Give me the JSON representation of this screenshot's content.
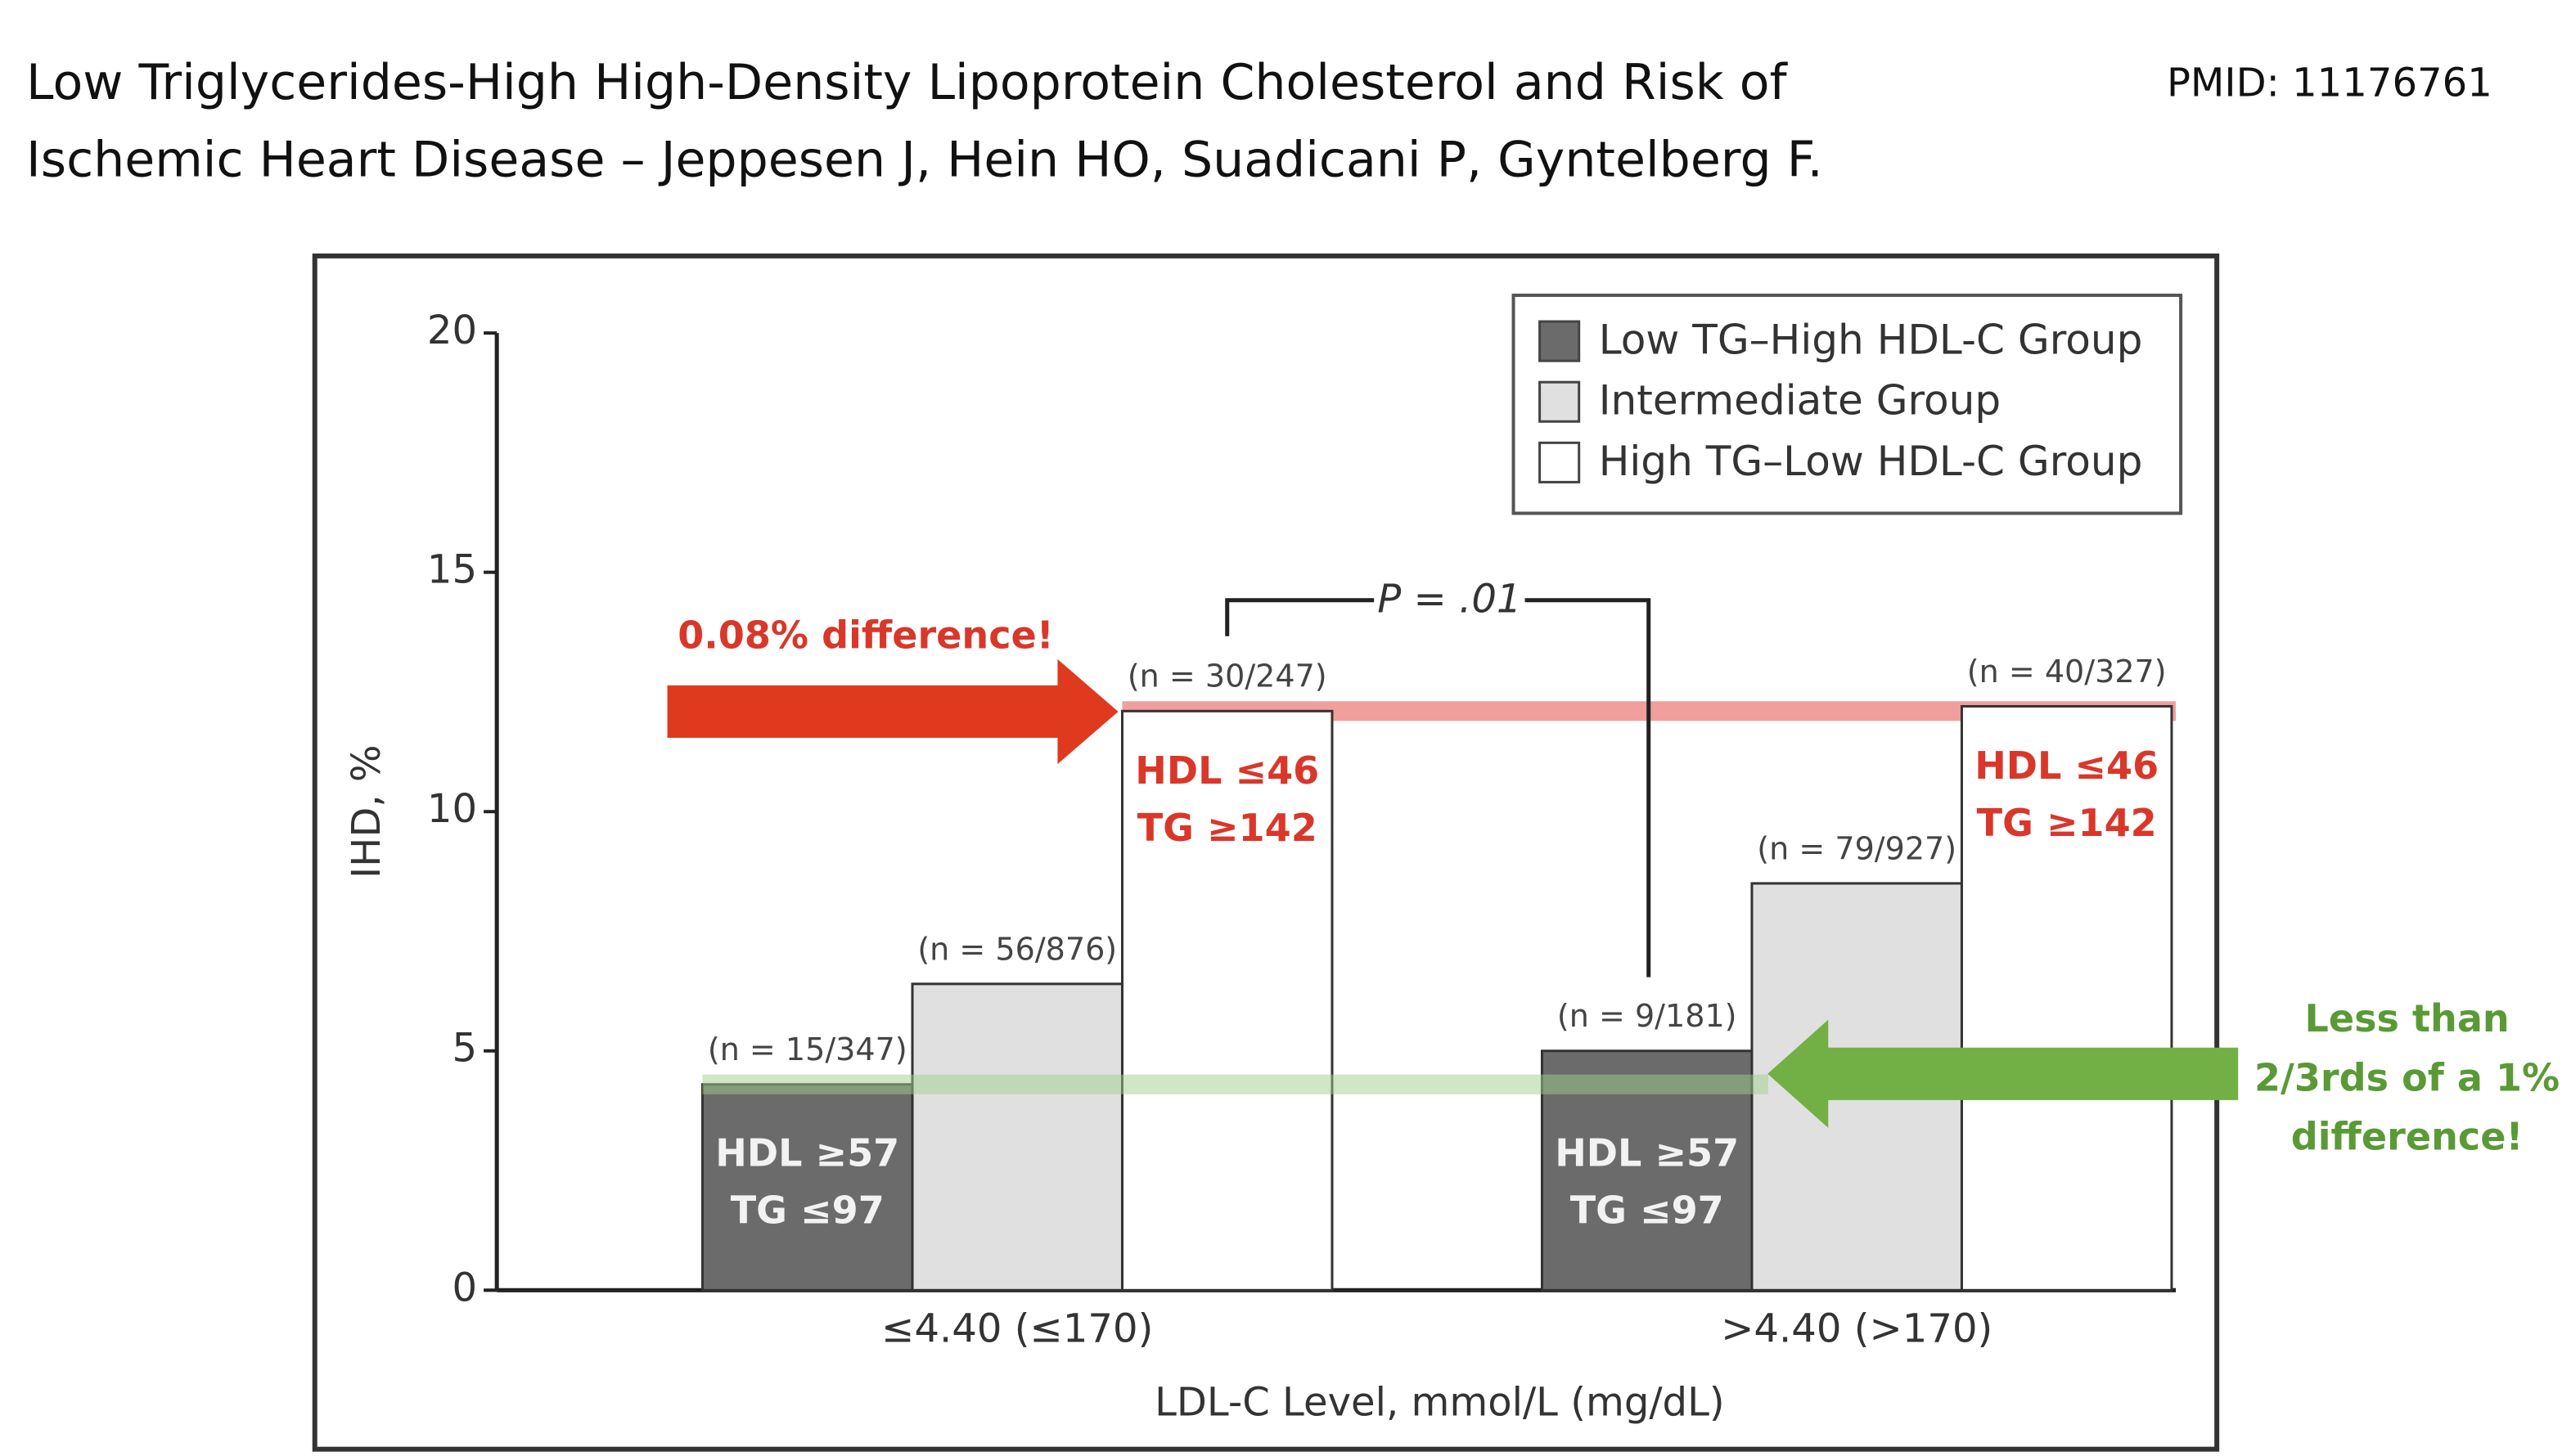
{
  "header": {
    "title": [
      "Low Triglycerides-High High-Density Lipoprotein Cholesterol and Risk of",
      "Ischemic Heart Disease – Jeppesen J, Hein HO, Suadicani P, Gyntelberg F."
    ],
    "pmid": "PMID: 11176761"
  },
  "chart_data": {
    "type": "bar",
    "categories": [
      "≤4.40 (≤170)",
      ">4.40 (>170)"
    ],
    "x_label": "LDL-C Level, mmol/L (mg/dL)",
    "y_label": "IHD, %",
    "ylim": [
      0,
      20
    ],
    "yticks": [
      0,
      5,
      10,
      15,
      20
    ],
    "grid": false,
    "legend": "upper right",
    "series": [
      {
        "name": "Low TG–High HDL-C Group",
        "color": "#6b6b6b",
        "values": [
          4.3,
          5.0
        ],
        "n_labels": [
          "(n = 15/347)",
          "(n = 9/181)"
        ],
        "notes": [
          [
            "HDL ≥57",
            "TG ≤97"
          ],
          [
            "HDL ≥57",
            "TG ≤97"
          ]
        ],
        "note_color": "#f2f2f2"
      },
      {
        "name": "Intermediate Group",
        "color": "#e0e0e0",
        "values": [
          6.4,
          8.5
        ],
        "n_labels": [
          "(n = 56/876)",
          "(n = 79/927)"
        ]
      },
      {
        "name": "High TG–Low HDL-C Group",
        "color": "#ffffff",
        "values": [
          12.1,
          12.2
        ],
        "n_labels": [
          "(n = 30/247)",
          "(n = 40/327)"
        ],
        "notes": [
          [
            "HDL ≤46",
            "TG ≥142"
          ],
          [
            "HDL ≤46",
            "TG ≥142"
          ]
        ],
        "note_color": "#d9372a"
      }
    ],
    "annotations": {
      "p_value": "P = .01",
      "left_arrow": "0.08% difference!",
      "right_arrow": [
        "Less than",
        "2/3rds of a 1%",
        "difference!"
      ]
    }
  }
}
